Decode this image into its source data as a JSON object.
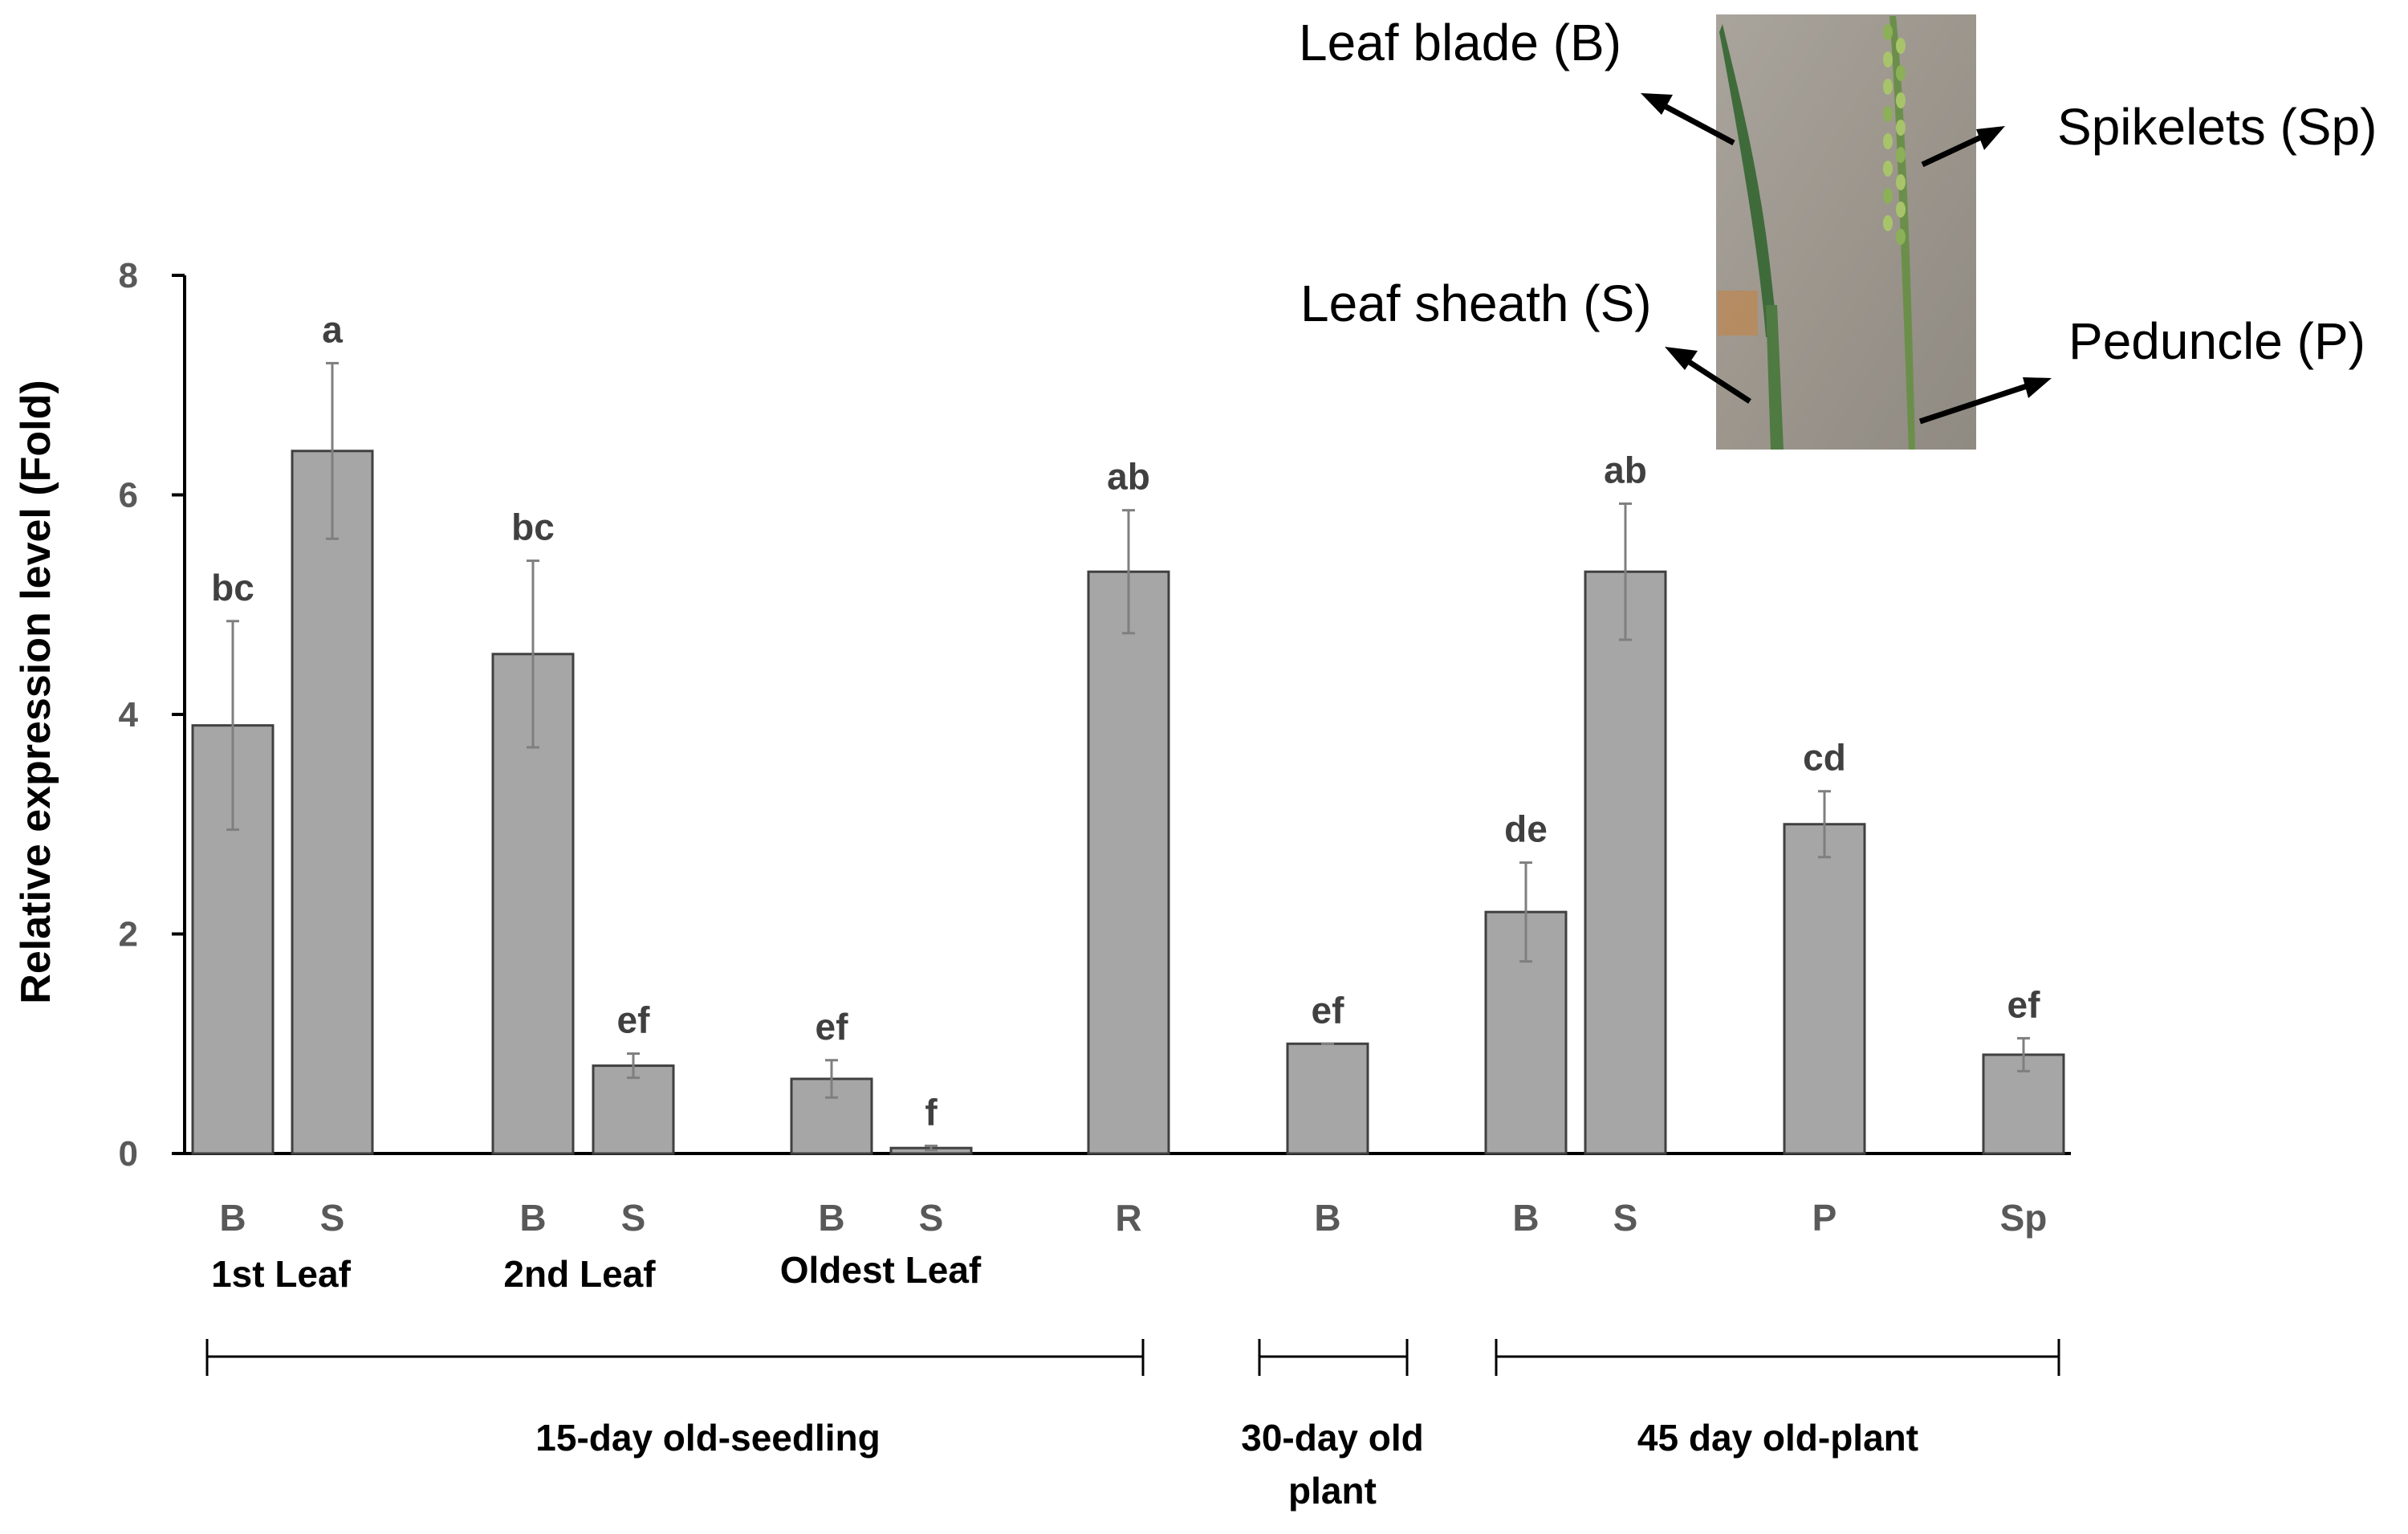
{
  "chart_data": {
    "type": "bar",
    "title": "",
    "xlabel": "",
    "ylabel": "Relative expression level (Fold)",
    "ylim": [
      0,
      8
    ],
    "yticks": [
      "0",
      "2",
      "4",
      "6",
      "8"
    ],
    "grid": false,
    "categories": [
      "B",
      "S",
      "B",
      "S",
      "B",
      "S",
      "R",
      "B",
      "B",
      "S",
      "P",
      "Sp"
    ],
    "values": [
      3.9,
      6.4,
      4.55,
      0.8,
      0.68,
      0.05,
      5.3,
      1.0,
      2.2,
      5.3,
      3.0,
      0.9
    ],
    "errors": [
      0.95,
      0.8,
      0.85,
      0.11,
      0.17,
      0.02,
      0.56,
      0.0,
      0.45,
      0.62,
      0.3,
      0.15
    ],
    "significance": [
      "bc",
      "a",
      "bc",
      "ef",
      "ef",
      "f",
      "ab",
      "ef",
      "de",
      "ab",
      "cd",
      "ef"
    ],
    "leaf_groups": [
      "1st Leaf",
      "2nd Leaf",
      "Oldest Leaf"
    ],
    "stage_groups": [
      "15-day old-seedling",
      "30-day old plant",
      "45 day old-plant"
    ],
    "bar_color": "#a6a6a6"
  },
  "inset": {
    "labels": {
      "leaf_blade": "Leaf blade (B)",
      "leaf_sheath": "Leaf sheath (S)",
      "spikelets": "Spikelets (Sp)",
      "peduncle": "Peduncle (P)"
    }
  }
}
